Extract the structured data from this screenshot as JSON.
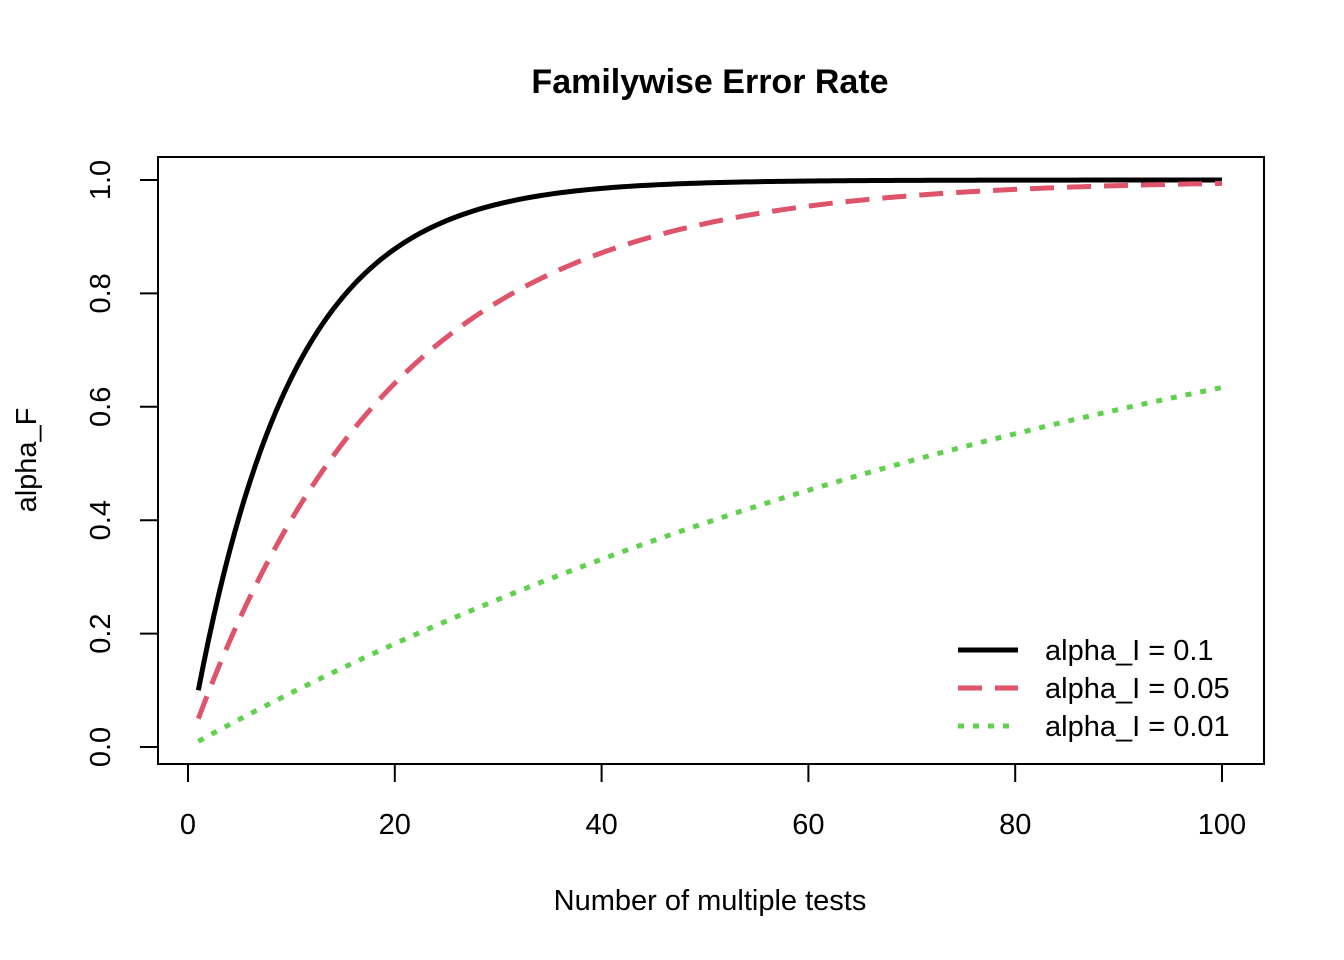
{
  "chart_data": {
    "type": "line",
    "title": "Familywise Error Rate",
    "xlabel": "Number of multiple tests",
    "ylabel": "alpha_F",
    "xlim": [
      1,
      100
    ],
    "ylim": [
      0,
      1
    ],
    "x_ticks": [
      0,
      20,
      40,
      60,
      80,
      100
    ],
    "y_ticks": [
      0.0,
      0.2,
      0.4,
      0.6,
      0.8,
      1.0
    ],
    "x_tick_labels": [
      "0",
      "20",
      "40",
      "60",
      "80",
      "100"
    ],
    "y_tick_labels": [
      "0.0",
      "0.2",
      "0.4",
      "0.6",
      "0.8",
      "1.0"
    ],
    "grid": false,
    "legend_position": "bottom-right",
    "series": [
      {
        "name": "alpha_I = 0.1",
        "alpha": 0.1,
        "color": "#000000",
        "style": "solid",
        "x": [
          1,
          2,
          3,
          5,
          10,
          15,
          20,
          30,
          40,
          50,
          60,
          70,
          80,
          90,
          100
        ],
        "values": [
          0.1,
          0.19,
          0.271,
          0.41,
          0.651,
          0.794,
          0.878,
          0.958,
          0.985,
          0.995,
          0.998,
          0.999,
          1.0,
          1.0,
          1.0
        ]
      },
      {
        "name": "alpha_I = 0.05",
        "alpha": 0.05,
        "color": "#DF536B",
        "style": "dashed",
        "x": [
          1,
          2,
          3,
          5,
          10,
          15,
          20,
          30,
          40,
          50,
          60,
          70,
          80,
          90,
          100
        ],
        "values": [
          0.05,
          0.098,
          0.143,
          0.226,
          0.401,
          0.537,
          0.642,
          0.785,
          0.871,
          0.923,
          0.954,
          0.972,
          0.984,
          0.99,
          0.994
        ]
      },
      {
        "name": "alpha_I = 0.01",
        "alpha": 0.01,
        "color": "#61D04F",
        "style": "dotted",
        "x": [
          1,
          2,
          3,
          5,
          10,
          15,
          20,
          30,
          40,
          50,
          60,
          70,
          80,
          90,
          100
        ],
        "values": [
          0.01,
          0.02,
          0.03,
          0.049,
          0.096,
          0.14,
          0.182,
          0.26,
          0.331,
          0.395,
          0.453,
          0.505,
          0.552,
          0.595,
          0.634
        ]
      }
    ]
  }
}
